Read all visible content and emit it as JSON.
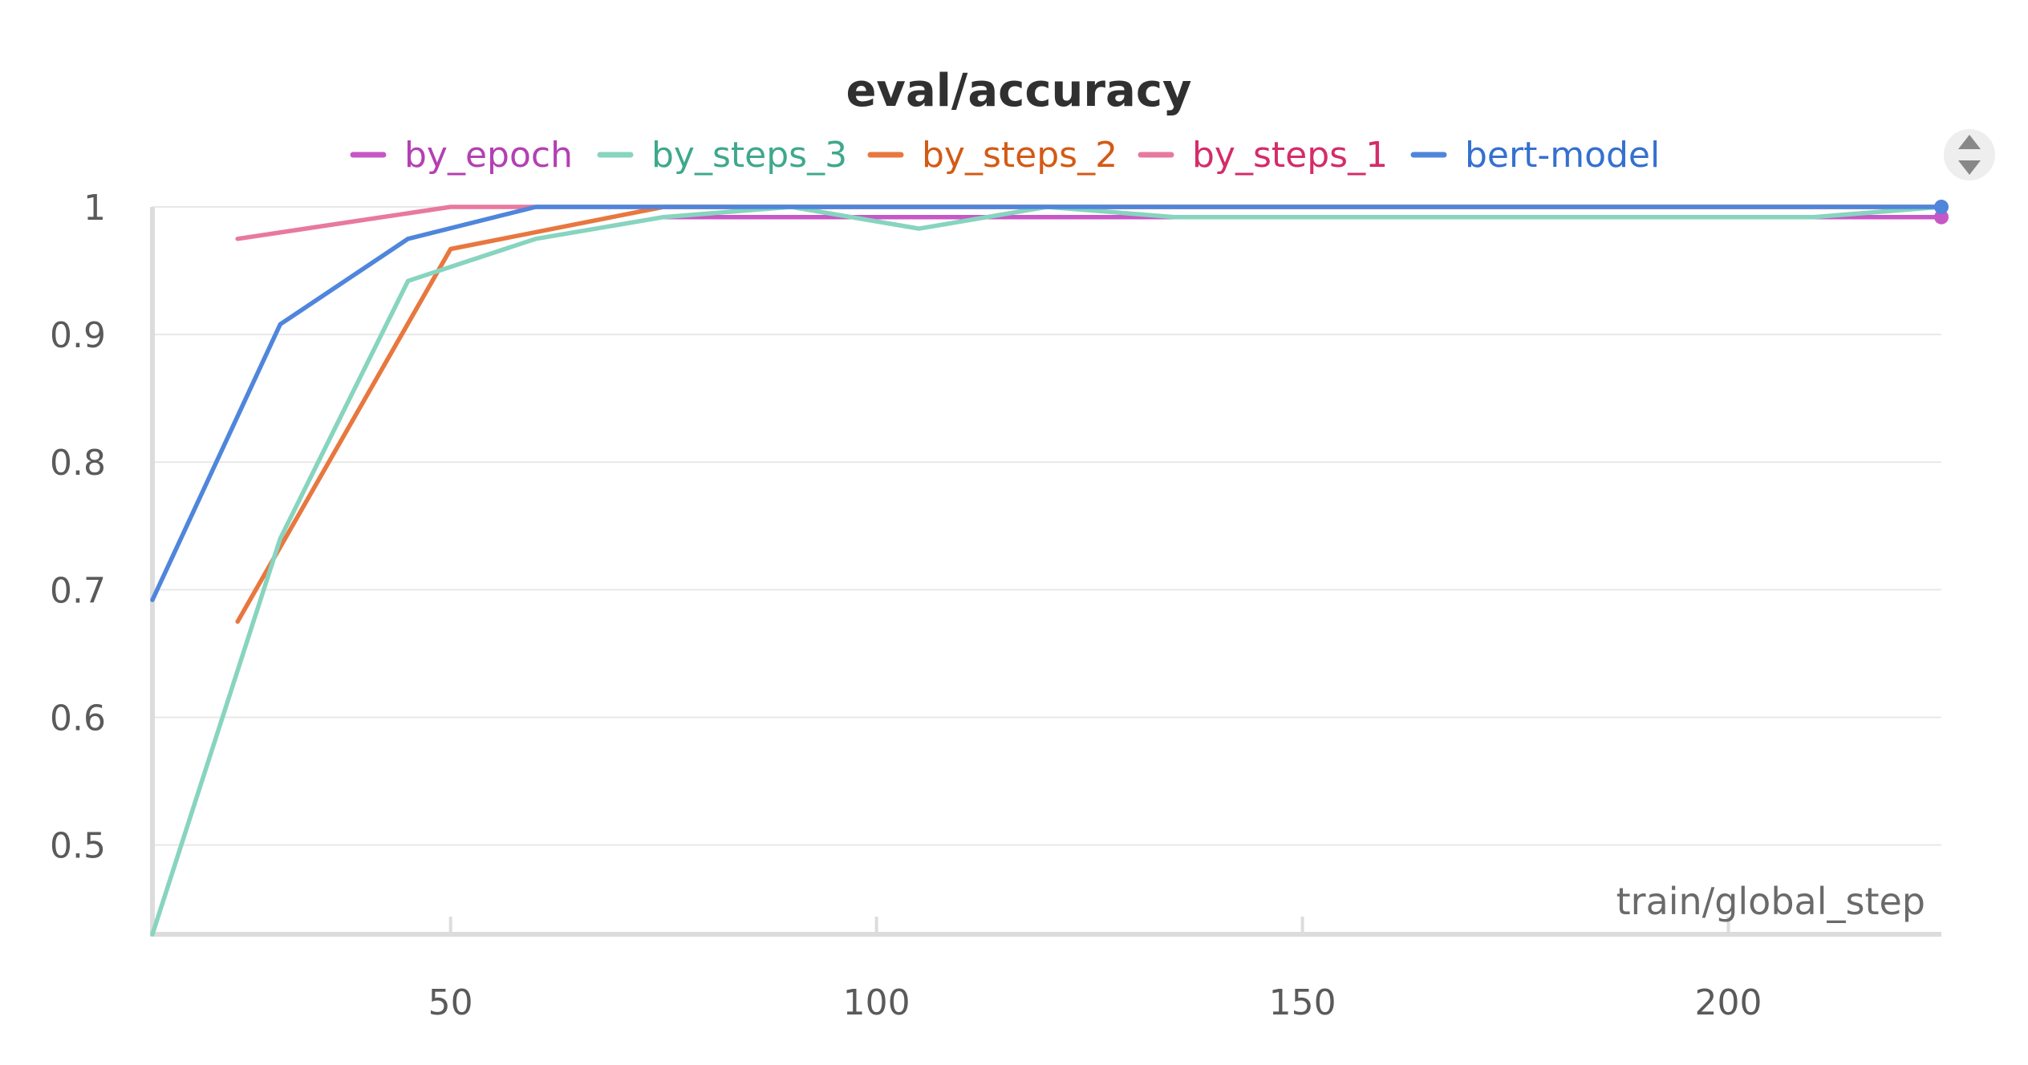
{
  "chart_data": {
    "type": "line",
    "title": "eval/accuracy",
    "xlabel": "train/global_step",
    "ylabel": "",
    "xlim": [
      15,
      225
    ],
    "ylim": [
      0.43,
      1
    ],
    "xticks": [
      50,
      100,
      150,
      200
    ],
    "xtick_labels": [
      "50",
      "100",
      "150",
      "200"
    ],
    "yticks": [
      0.5,
      0.6,
      0.7,
      0.8,
      0.9,
      1
    ],
    "ytick_labels": [
      "0.5",
      "0.6",
      "0.7",
      "0.8",
      "0.9",
      "1"
    ],
    "grid": true,
    "legend_position": "top",
    "series": [
      {
        "name": "by_epoch",
        "color": "#c757c7",
        "text_color": "#b340b3",
        "x": [
          75,
          225
        ],
        "y": [
          0.992,
          0.992
        ]
      },
      {
        "name": "by_steps_3",
        "color": "#87d4bf",
        "text_color": "#3fa88c",
        "x": [
          15,
          30,
          45,
          60,
          75,
          90,
          105,
          120,
          135,
          150,
          165,
          180,
          195,
          210,
          225
        ],
        "y": [
          0.43,
          0.74,
          0.942,
          0.975,
          0.992,
          1,
          0.983,
          1,
          0.992,
          0.992,
          0.992,
          0.992,
          0.992,
          0.992,
          1
        ]
      },
      {
        "name": "by_steps_2",
        "color": "#e8773f",
        "text_color": "#d35a16",
        "x": [
          25,
          50,
          75,
          100,
          125,
          150,
          175,
          200,
          225
        ],
        "y": [
          0.675,
          0.967,
          1,
          1,
          1,
          1,
          1,
          1,
          1
        ]
      },
      {
        "name": "by_steps_1",
        "color": "#e8799e",
        "text_color": "#d42c6a",
        "x": [
          25,
          50,
          75,
          100,
          125,
          150,
          175,
          200,
          225
        ],
        "y": [
          0.975,
          1,
          1,
          1,
          1,
          1,
          1,
          1,
          1
        ]
      },
      {
        "name": "bert-model",
        "color": "#4f86dc",
        "text_color": "#3570cf",
        "x": [
          15,
          30,
          45,
          60,
          75,
          90,
          105,
          120,
          135,
          150,
          165,
          180,
          195,
          210,
          225
        ],
        "y": [
          0.692,
          0.908,
          0.975,
          1,
          1,
          1,
          1,
          1,
          1,
          1,
          1,
          1,
          1,
          1,
          1
        ]
      }
    ]
  },
  "icons": {
    "legend_scroll": "scroll-arrows-icon"
  }
}
